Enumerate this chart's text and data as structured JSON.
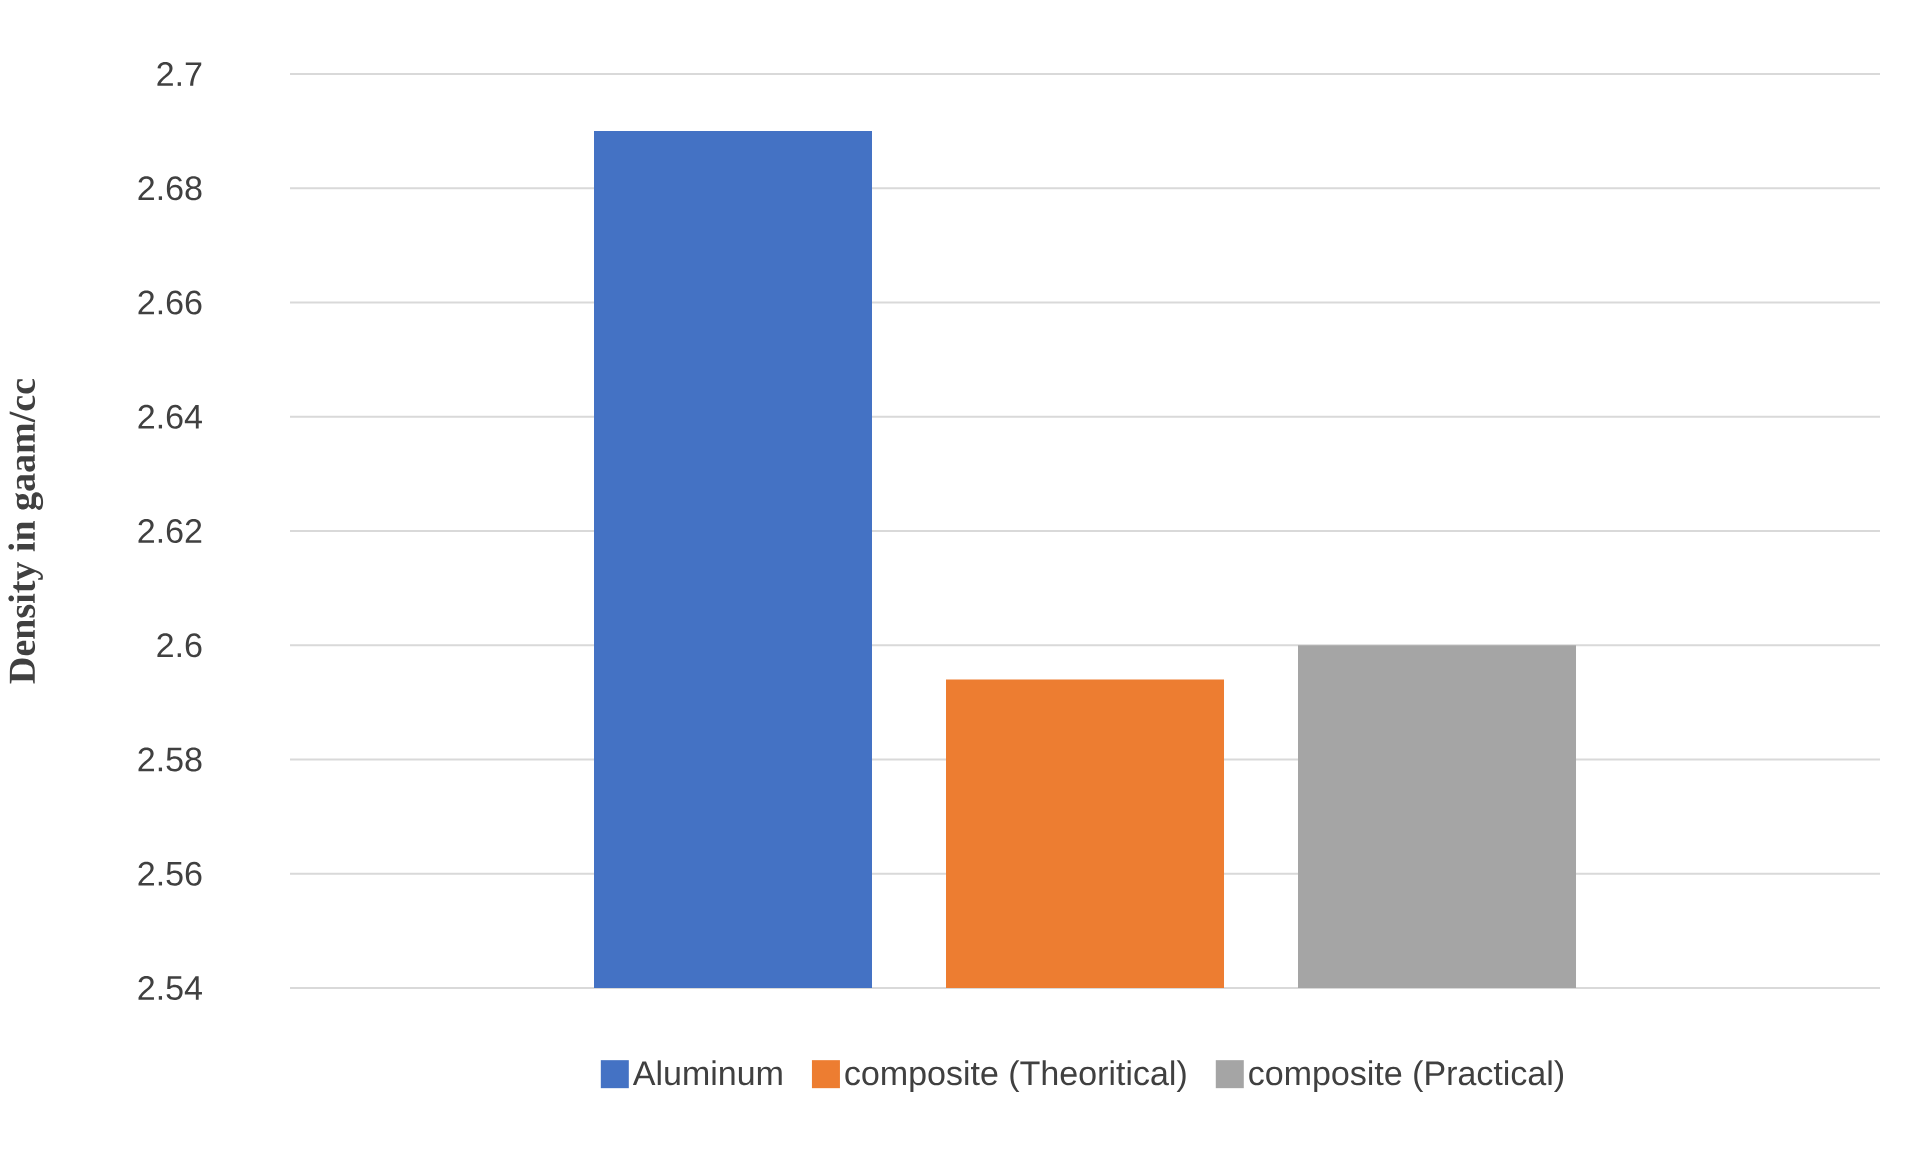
{
  "chart_data": {
    "type": "bar",
    "ylabel": "Density in gaam/cc",
    "categories": [
      null
    ],
    "series": [
      {
        "name": "Aluminum",
        "color": "#4472c4",
        "values": [
          2.69
        ]
      },
      {
        "name": "composite (Theoritical)",
        "color": "#ed7d31",
        "values": [
          2.594
        ]
      },
      {
        "name": "composite (Practical)",
        "color": "#a5a5a5",
        "values": [
          2.6
        ]
      }
    ],
    "ylim": [
      2.54,
      2.7
    ],
    "yticks": [
      2.54,
      2.56,
      2.58,
      2.6,
      2.62,
      2.64,
      2.66,
      2.68,
      2.7
    ],
    "grid": "y",
    "legend": "bottom"
  }
}
